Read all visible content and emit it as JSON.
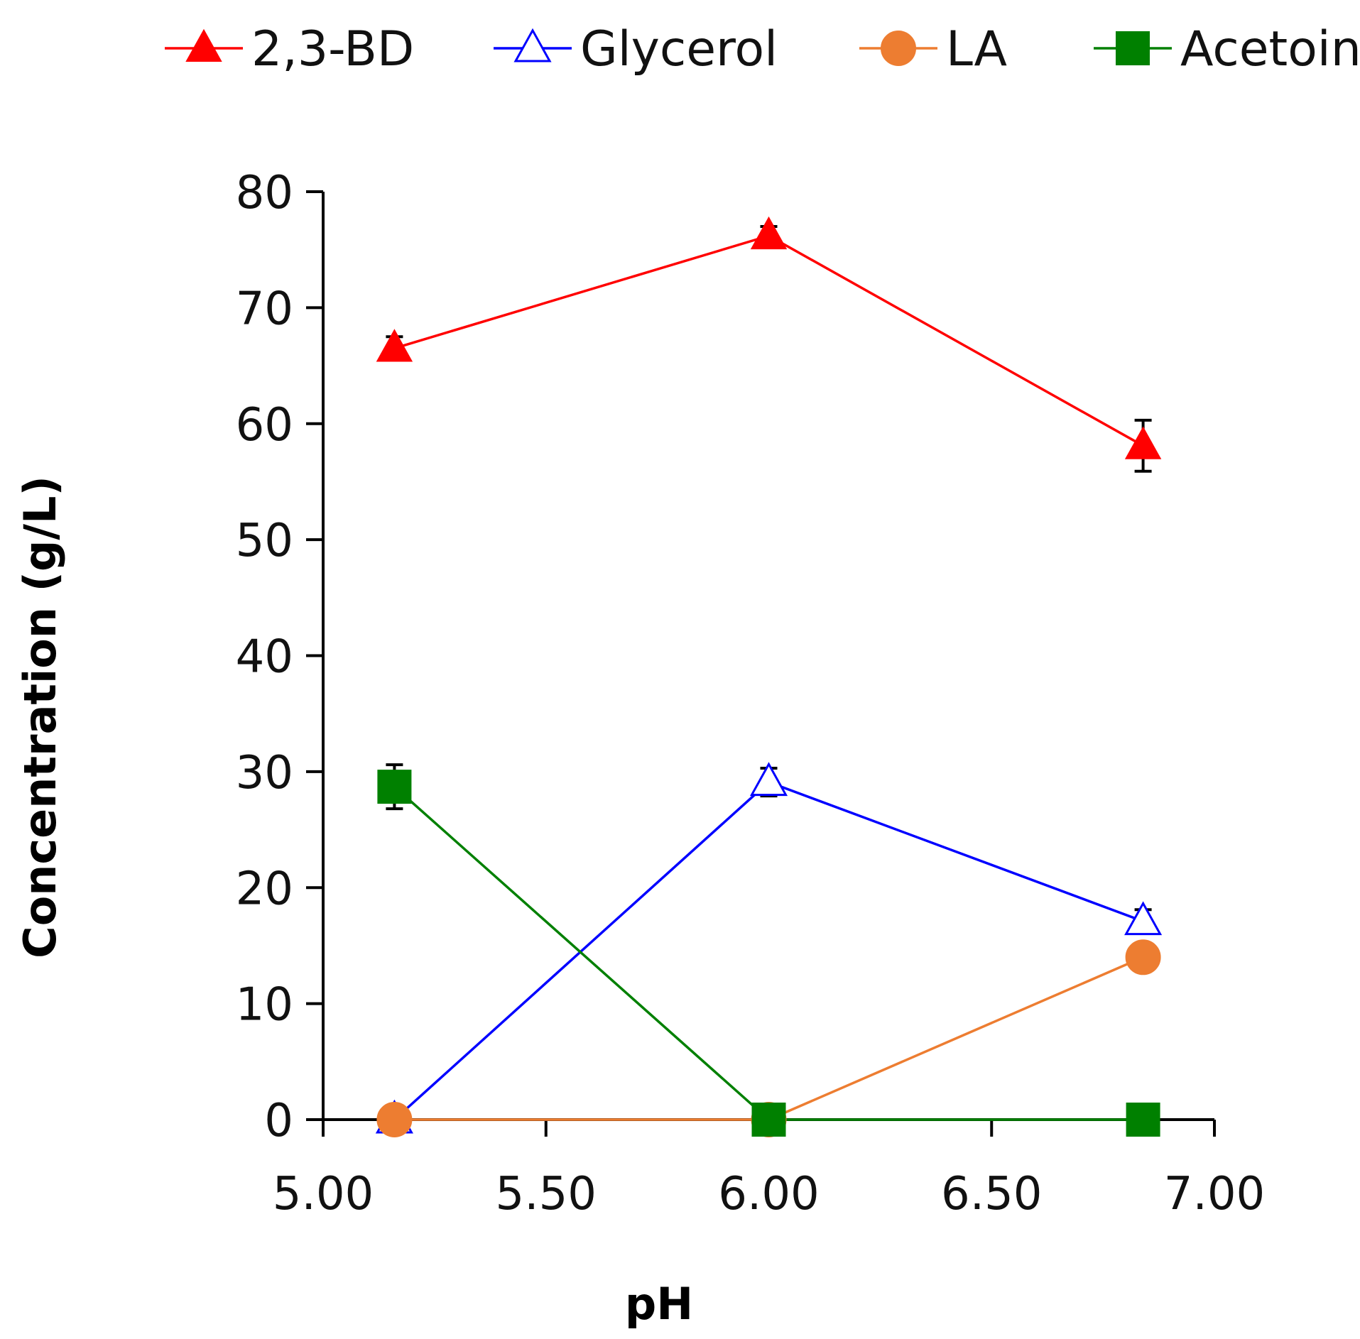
{
  "chart_data": {
    "type": "line",
    "title": "",
    "xlabel": "pH",
    "ylabel": "Concentration (g/L)",
    "xlim": [
      5.0,
      7.0
    ],
    "ylim": [
      0,
      80
    ],
    "x_ticks": [
      "5.00",
      "5.50",
      "6.00",
      "6.50",
      "7.00"
    ],
    "y_ticks": [
      "0",
      "10",
      "20",
      "30",
      "40",
      "50",
      "60",
      "70",
      "80"
    ],
    "grid": false,
    "legend_position": "top",
    "series": [
      {
        "name": "2,3-BD",
        "color": "#ff0000",
        "marker": "triangle-filled",
        "x": [
          5.16,
          6.0,
          6.84
        ],
        "y": [
          66.5,
          76.2,
          58.1
        ],
        "error": [
          1.0,
          0.8,
          2.2
        ]
      },
      {
        "name": "Glycerol",
        "color": "#0000ff",
        "marker": "triangle-open",
        "x": [
          5.16,
          6.0,
          6.84
        ],
        "y": [
          0,
          29.1,
          17.1
        ],
        "error": [
          0,
          1.2,
          1.0
        ]
      },
      {
        "name": "LA",
        "color": "#ed7d31",
        "marker": "circle",
        "x": [
          5.16,
          6.0,
          6.84
        ],
        "y": [
          0,
          0,
          14.0
        ],
        "error": [
          0,
          0,
          0
        ]
      },
      {
        "name": "Acetoin",
        "color": "#008000",
        "marker": "square",
        "x": [
          5.16,
          6.0,
          6.84
        ],
        "y": [
          28.7,
          0,
          0
        ],
        "error": [
          1.9,
          0,
          0
        ]
      }
    ]
  }
}
